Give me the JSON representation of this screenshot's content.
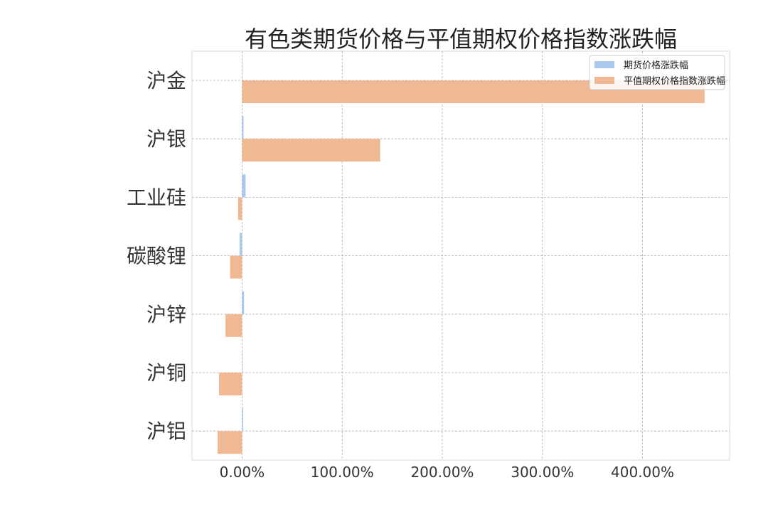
{
  "chart_data": {
    "type": "bar",
    "orientation": "horizontal",
    "title": "有色类期货价格与平值期权价格指数涨跌幅",
    "categories": [
      "沪金",
      "沪银",
      "工业硅",
      "碳酸锂",
      "沪锌",
      "沪铜",
      "沪铝"
    ],
    "series": [
      {
        "name": "期货价格涨跌幅",
        "color": "#a9c8ec",
        "values": [
          0.3,
          1.5,
          3.5,
          -2.5,
          2.0,
          0.5,
          1.0
        ]
      },
      {
        "name": "平值期权价格指数涨跌幅",
        "color": "#f0b993",
        "values": [
          462.0,
          138.0,
          -4.0,
          -12.0,
          -16.5,
          -23.0,
          -24.5
        ]
      }
    ],
    "x_ticks": [
      "0.00%",
      "100.00%",
      "200.00%",
      "300.00%",
      "400.00%"
    ],
    "x_tick_values": [
      0,
      100,
      200,
      300,
      400
    ],
    "xlim": [
      -50,
      487
    ],
    "grid": true,
    "legend_position": "top-right"
  }
}
